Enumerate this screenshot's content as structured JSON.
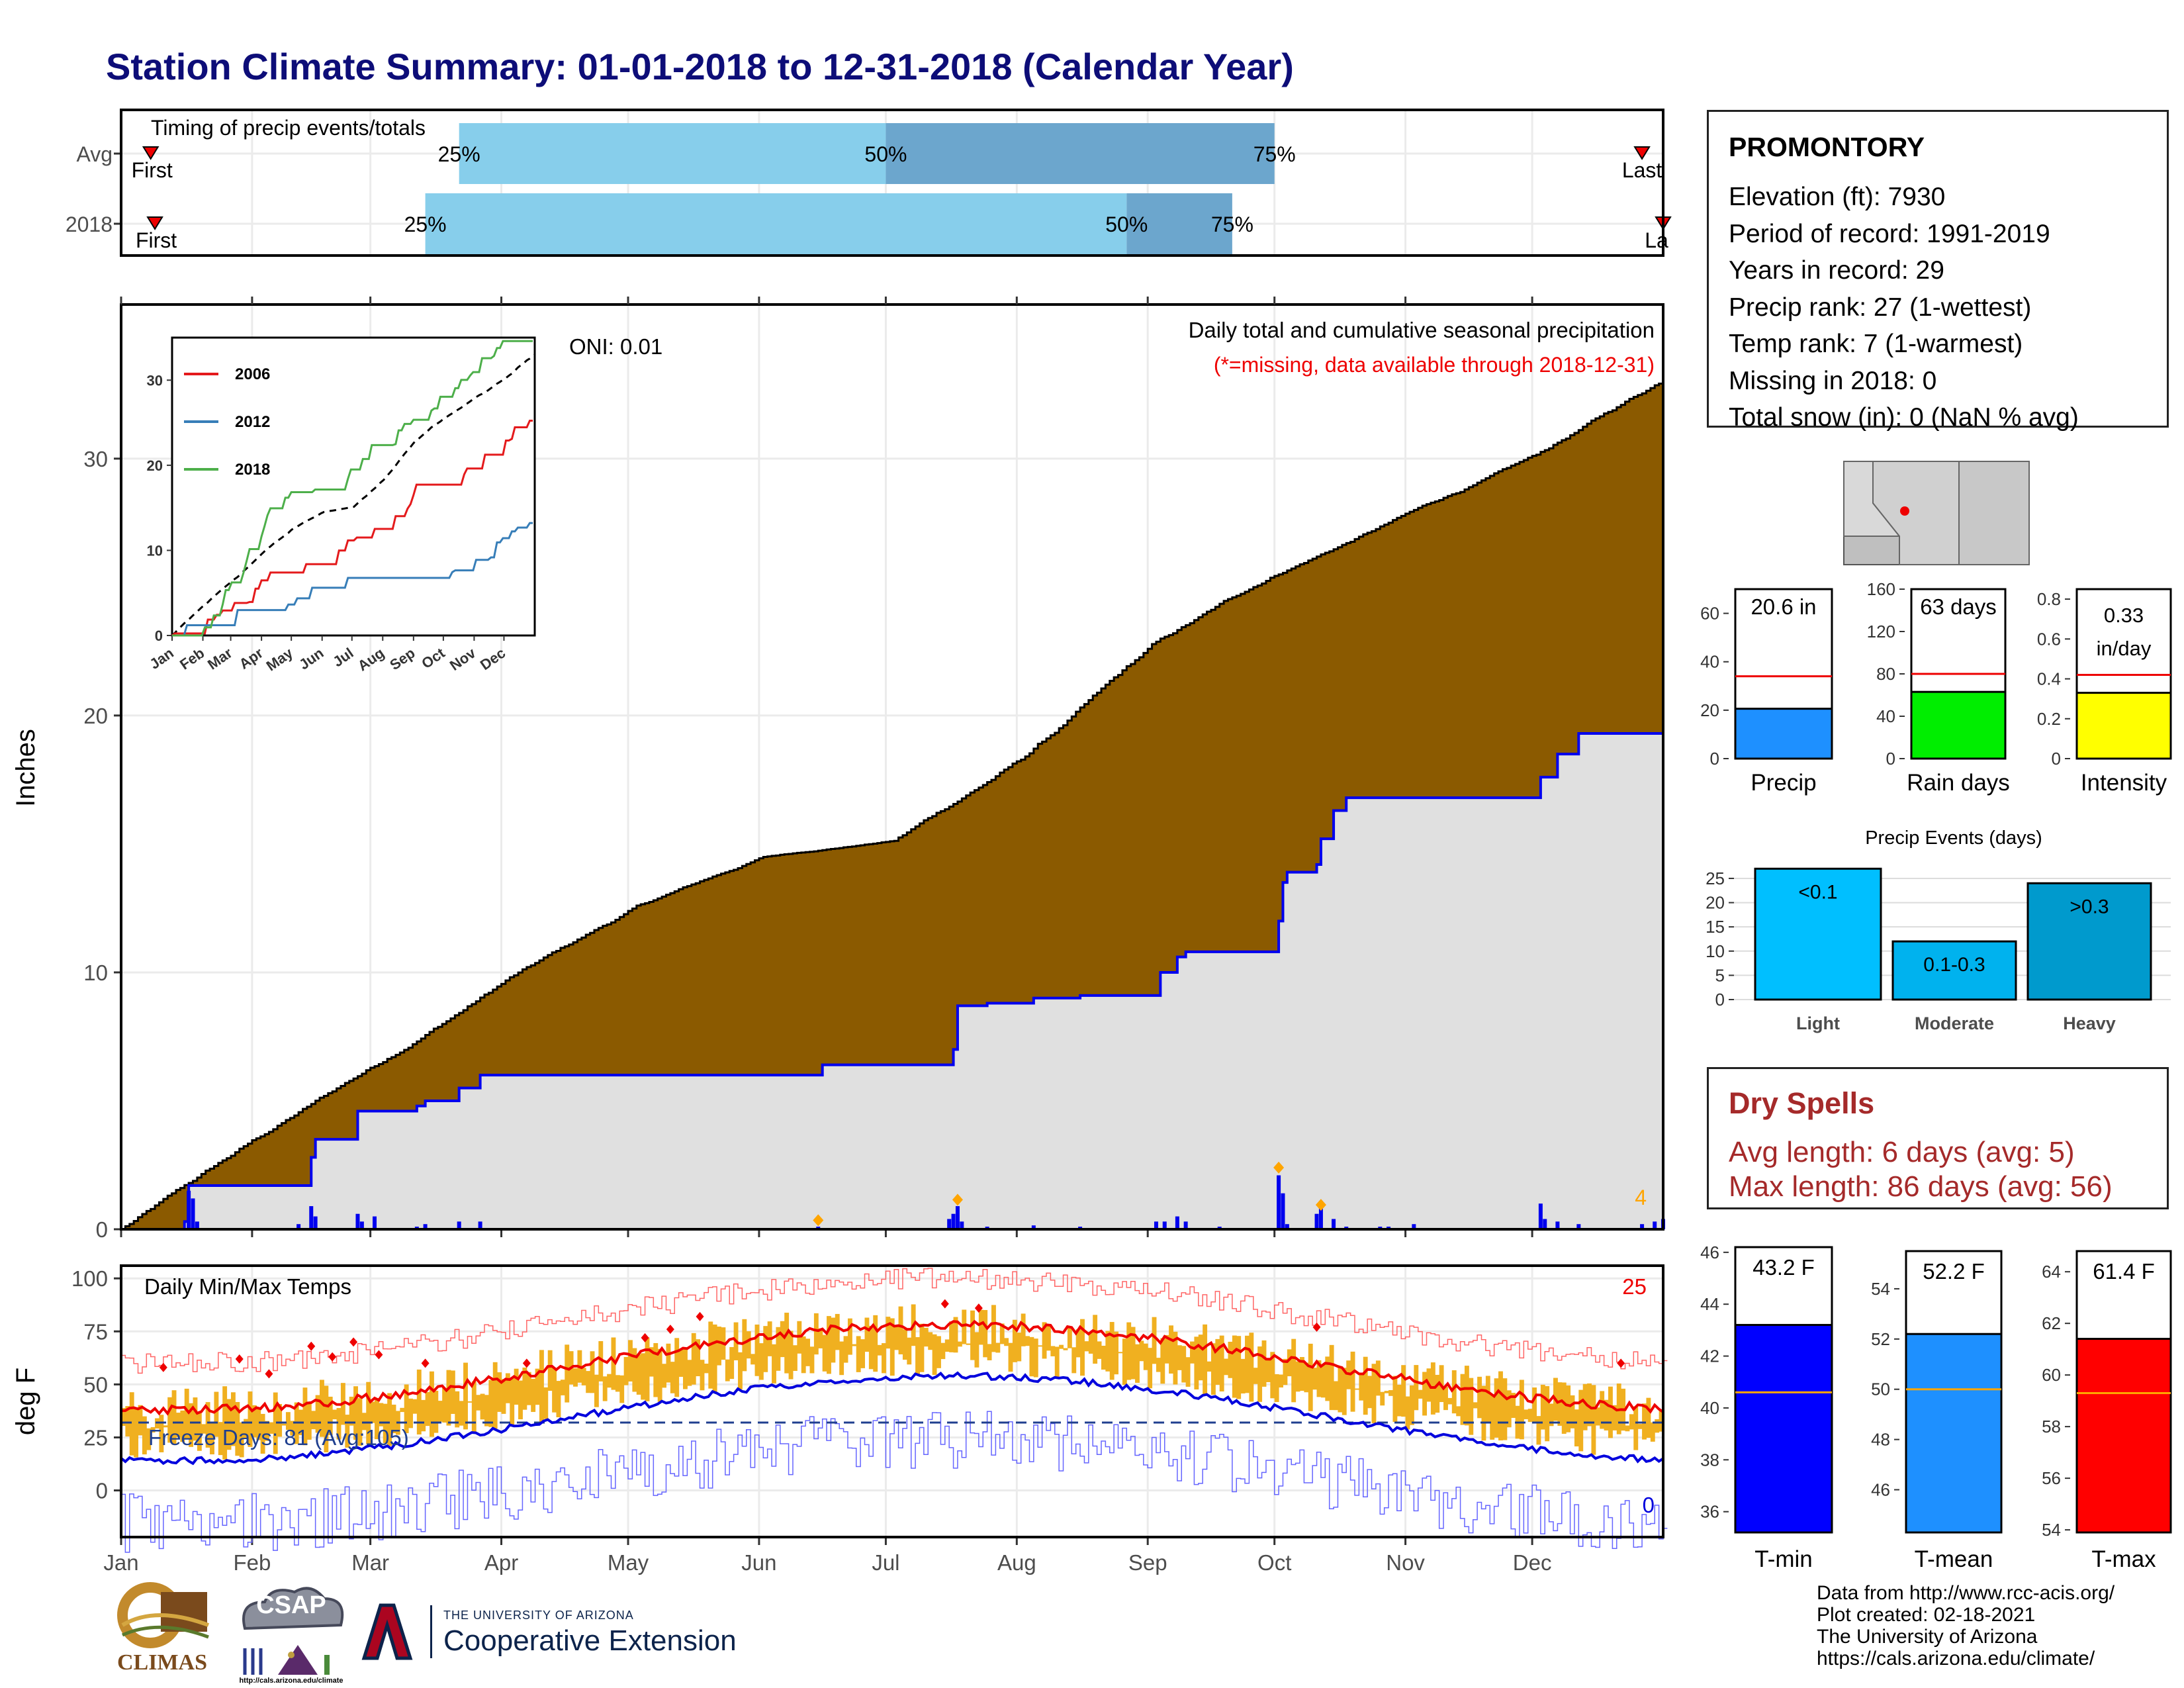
{
  "title": "Station Climate Summary: 01-01-2018 to 12-31-2018 (Calendar Year)",
  "timing": {
    "label": "Timing of precip events/totals",
    "rows": [
      {
        "name": "Avg",
        "first_label": "First",
        "last_label": "Last",
        "first_day": 7,
        "last_day": 360,
        "p25": 80,
        "p50": 181,
        "p75": 273
      },
      {
        "name": "2018",
        "first_label": "First",
        "last_label": "La",
        "first_day": 8,
        "last_day": 365,
        "p25": 72,
        "p50": 238,
        "p75": 263
      }
    ],
    "pct_labels": [
      "25%",
      "50%",
      "75%"
    ]
  },
  "precip": {
    "ylabel": "Inches",
    "yticks": [
      0,
      10,
      20,
      30
    ],
    "ymax": 36,
    "oni": "ONI: 0.01",
    "subtitle": "Daily total and cumulative seasonal precipitation",
    "missing_note": "(*=missing, data available through 2018-12-31)",
    "extreme_count": "4",
    "avg_cum_end": 33.0,
    "year_cum_steps": [
      [
        0,
        0
      ],
      [
        15,
        0.3
      ],
      [
        16,
        1.7
      ],
      [
        42,
        1.7
      ],
      [
        45,
        2.8
      ],
      [
        46,
        3.5
      ],
      [
        56,
        4.6
      ],
      [
        70,
        4.8
      ],
      [
        72,
        5.0
      ],
      [
        80,
        5.5
      ],
      [
        85,
        6.0
      ],
      [
        100,
        6.0
      ],
      [
        165,
        6.0
      ],
      [
        166,
        6.4
      ],
      [
        196,
        6.4
      ],
      [
        197,
        7.0
      ],
      [
        198,
        8.7
      ],
      [
        205,
        8.8
      ],
      [
        216,
        9.0
      ],
      [
        227,
        9.1
      ],
      [
        245,
        9.1
      ],
      [
        246,
        10.0
      ],
      [
        250,
        10.6
      ],
      [
        252,
        10.8
      ],
      [
        273,
        10.8
      ],
      [
        274,
        12.0
      ],
      [
        275,
        13.5
      ],
      [
        276,
        13.9
      ],
      [
        283,
        14.2
      ],
      [
        284,
        15.2
      ],
      [
        287,
        16.3
      ],
      [
        290,
        16.8
      ],
      [
        320,
        16.8
      ],
      [
        335,
        16.8
      ],
      [
        336,
        17.6
      ],
      [
        340,
        18.5
      ],
      [
        345,
        19.3
      ],
      [
        360,
        19.3
      ],
      [
        365,
        20.6
      ]
    ],
    "daily_bars": [
      [
        16,
        1.5
      ],
      [
        17,
        1.2
      ],
      [
        18,
        0.3
      ],
      [
        42,
        0.2
      ],
      [
        45,
        0.9
      ],
      [
        46,
        0.5
      ],
      [
        56,
        0.6
      ],
      [
        57,
        0.3
      ],
      [
        60,
        0.5
      ],
      [
        70,
        0.1
      ],
      [
        72,
        0.2
      ],
      [
        80,
        0.3
      ],
      [
        85,
        0.3
      ],
      [
        165,
        0.1
      ],
      [
        196,
        0.4
      ],
      [
        197,
        0.6
      ],
      [
        198,
        0.9
      ],
      [
        199,
        0.3
      ],
      [
        205,
        0.1
      ],
      [
        216,
        0.15
      ],
      [
        227,
        0.1
      ],
      [
        245,
        0.3
      ],
      [
        247,
        0.3
      ],
      [
        250,
        0.5
      ],
      [
        252,
        0.3
      ],
      [
        260,
        0.1
      ],
      [
        274,
        2.1
      ],
      [
        275,
        1.4
      ],
      [
        276,
        0.2
      ],
      [
        283,
        0.6
      ],
      [
        284,
        1.1
      ],
      [
        287,
        0.4
      ],
      [
        290,
        0.1
      ],
      [
        298,
        0.1
      ],
      [
        300,
        0.1
      ],
      [
        306,
        0.2
      ],
      [
        336,
        1.0
      ],
      [
        337,
        0.4
      ],
      [
        340,
        0.3
      ],
      [
        345,
        0.2
      ],
      [
        360,
        0.2
      ],
      [
        363,
        0.3
      ],
      [
        365,
        0.4
      ]
    ],
    "extreme_markers": [
      [
        165,
        0.35
      ],
      [
        198,
        1.15
      ],
      [
        274,
        2.4
      ],
      [
        284,
        0.95
      ]
    ],
    "inset": {
      "yticks": [
        0,
        10,
        20,
        30
      ],
      "months": [
        "Jan",
        "Feb",
        "Mar",
        "Apr",
        "May",
        "Jun",
        "Jul",
        "Aug",
        "Sep",
        "Oct",
        "Nov",
        "Dec"
      ],
      "legend": [
        {
          "name": "2006",
          "color": "#e41a1c"
        },
        {
          "name": "2012",
          "color": "#377eb8"
        },
        {
          "name": "2018",
          "color": "#4daf4a"
        }
      ]
    }
  },
  "temps": {
    "ylabel": "deg F",
    "label": "Daily Min/Max Temps",
    "yticks": [
      0,
      25,
      50,
      75,
      100
    ],
    "hot_count": "25",
    "cold_count": "0",
    "freeze_label": "Freeze Days: 81 (Avg:105)",
    "freeze_line": 32
  },
  "xaxis": {
    "months": [
      "Jan",
      "Feb",
      "Mar",
      "Apr",
      "May",
      "Jun",
      "Jul",
      "Aug",
      "Sep",
      "Oct",
      "Nov",
      "Dec"
    ],
    "month_starts": [
      0,
      31,
      59,
      90,
      120,
      151,
      181,
      212,
      243,
      273,
      304,
      334
    ]
  },
  "station": {
    "name": "PROMONTORY",
    "rows": [
      "Elevation (ft): 7930",
      "Period of record: 1991-2019",
      "Years in record: 29",
      "Precip rank: 27 (1-wettest)",
      "Temp rank: 7 (1-warmest)",
      "Missing in 2018: 0",
      "Total snow (in): 0 (NaN % avg)"
    ]
  },
  "summary_bars": [
    {
      "label": "Precip",
      "value_text": "20.6 in",
      "value": 20.6,
      "avg": 34,
      "ymax": 70,
      "yticks": [
        0,
        20,
        40,
        60
      ],
      "color": "#1e90ff"
    },
    {
      "label": "Rain days",
      "value_text": "63 days",
      "value": 63,
      "avg": 80,
      "ymax": 160,
      "yticks": [
        0,
        40,
        80,
        120,
        160
      ],
      "color": "#00ee00"
    },
    {
      "label": "Intensity",
      "value_text": "0.33 in/day",
      "value": 0.33,
      "avg": 0.42,
      "ymax": 0.85,
      "yticks": [
        0.0,
        0.2,
        0.4,
        0.6,
        0.8
      ],
      "color": "#ffff00"
    }
  ],
  "precip_events": {
    "title": "Precip Events (days)",
    "yticks": [
      0,
      5,
      10,
      15,
      20,
      25
    ],
    "bars": [
      {
        "label": "Light",
        "value_text": "<0.1",
        "value": 27,
        "color": "#00bfff"
      },
      {
        "label": "Moderate",
        "value_text": "0.1-0.3",
        "value": 12,
        "color": "#00b2ee"
      },
      {
        "label": "Heavy",
        "value_text": ">0.3",
        "value": 24,
        "color": "#009acd"
      }
    ]
  },
  "dry_spells": {
    "title": "Dry Spells",
    "rows": [
      "Avg length: 6 days (avg: 5)",
      "Max length: 86 days (avg: 56)"
    ]
  },
  "temp_bars": [
    {
      "label": "T-min",
      "value_text": "43.2 F",
      "value": 43.2,
      "avg": 40.6,
      "ylim": [
        35.2,
        46.2
      ],
      "yticks": [
        36,
        38,
        40,
        42,
        44,
        46
      ],
      "color": "#0000ff"
    },
    {
      "label": "T-mean",
      "value_text": "52.2 F",
      "value": 52.2,
      "avg": 50.0,
      "ylim": [
        44.3,
        55.5
      ],
      "yticks": [
        46,
        48,
        50,
        52,
        54
      ],
      "color": "#1e90ff"
    },
    {
      "label": "T-max",
      "value_text": "61.4 F",
      "value": 61.4,
      "avg": 59.3,
      "ylim": [
        53.9,
        64.8
      ],
      "yticks": [
        54,
        56,
        58,
        60,
        62,
        64
      ],
      "color": "#ff0000"
    }
  ],
  "credits": [
    "Data from http://www.rcc-acis.org/",
    "Plot created: 02-18-2021",
    "The University of Arizona",
    "https://cals.arizona.edu/climate/"
  ],
  "logos": {
    "climas": "CLIMAS",
    "csap": "CSAP",
    "csap_url": "http://cals.arizona.edu/climate",
    "ua_small": "THE UNIVERSITY OF ARIZONA",
    "ua_big": "Cooperative Extension",
    "ua_letter": "A"
  },
  "chart_data": [
    {
      "type": "area",
      "title": "Daily total and cumulative seasonal precipitation",
      "ylabel": "Inches",
      "ylim": [
        0,
        36
      ],
      "series": [
        {
          "name": "",
          "values": "avg cumulative precipitation to 33.0 in by Dec 31"
        },
        {
          "name": "",
          "values": "2018 cumulative precipitation to 20.6 in by Dec 31"
        }
      ]
    },
    {
      "type": "bar",
      "categories": [
        "Precip",
        "Rain days",
        "Intensity"
      ],
      "values": [
        20.6,
        63,
        0.33
      ]
    },
    {
      "type": "bar",
      "title": "Precip Events (days)",
      "categories": [
        "Light",
        "Moderate",
        "Heavy"
      ],
      "values": [
        27,
        12,
        24
      ]
    },
    {
      "type": "bar",
      "categories": [
        "T-min",
        "T-mean",
        "T-max"
      ],
      "values": [
        43.2,
        52.2,
        61.4
      ]
    }
  ]
}
